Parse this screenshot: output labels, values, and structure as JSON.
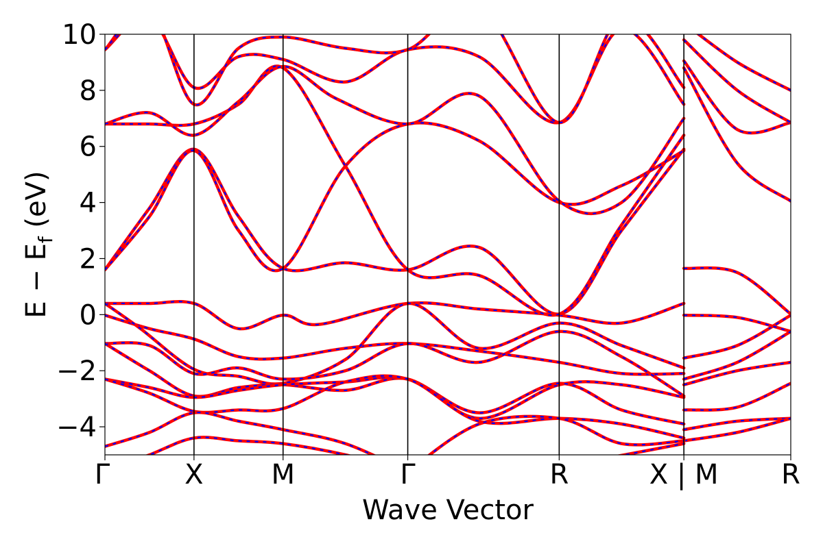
{
  "chart_data": {
    "type": "line",
    "title": "",
    "xlabel": "Wave Vector",
    "ylabel_main": "E − E",
    "ylabel_sub": "f",
    "ylabel_unit": " (eV)",
    "ylim": [
      -5,
      10
    ],
    "yticks": [
      10,
      8,
      6,
      4,
      2,
      0,
      -2,
      -4
    ],
    "ytick_labels": [
      "10",
      "8",
      "6",
      "4",
      "2",
      "0",
      "−2",
      "−4"
    ],
    "xlim": [
      0,
      7.7
    ],
    "kpoints": [
      {
        "label": "Γ",
        "x": 0
      },
      {
        "label": "X",
        "x": 1.0
      },
      {
        "label": "M",
        "x": 2.0
      },
      {
        "label": "Γ",
        "x": 3.4
      },
      {
        "label": "R",
        "x": 5.1
      },
      {
        "label": "X | M",
        "x": 6.5
      },
      {
        "label": "R",
        "x": 7.7
      }
    ],
    "grid": false,
    "legend": "none",
    "colors": {
      "primary": "#ff0000",
      "secondary": "#0000ff",
      "kline": "#000000"
    },
    "series": [
      {
        "segments": [
          [
            [
              0,
              -0.02
            ],
            [
              0.5,
              -0.5
            ],
            [
              1.0,
              -0.87
            ],
            [
              1.5,
              -1.5
            ],
            [
              2.0,
              -1.55
            ],
            [
              2.7,
              -1.2
            ],
            [
              3.4,
              -1.03
            ],
            [
              4.2,
              -1.3
            ],
            [
              5.1,
              -1.7
            ],
            [
              5.8,
              -2.1
            ],
            [
              6.5,
              -2.1
            ]
          ],
          [
            [
              6.5,
              -1.55
            ],
            [
              7.1,
              -1.1
            ],
            [
              7.7,
              -0.02
            ]
          ]
        ]
      },
      {
        "segments": [
          [
            [
              0,
              0.4
            ],
            [
              0.5,
              0.4
            ],
            [
              1.0,
              0.4
            ],
            [
              1.5,
              -0.5
            ],
            [
              2.0,
              -0.02
            ],
            [
              2.4,
              -0.35
            ],
            [
              3.4,
              0.4
            ],
            [
              4.2,
              0.2
            ],
            [
              5.1,
              -0.02
            ],
            [
              5.8,
              -0.3
            ],
            [
              6.5,
              0.4
            ]
          ],
          [
            [
              6.5,
              -0.02
            ],
            [
              7.1,
              -0.1
            ],
            [
              7.7,
              -0.6
            ]
          ]
        ]
      },
      {
        "segments": [
          [
            [
              0,
              0.4
            ],
            [
              0.4,
              -0.5
            ],
            [
              1.0,
              -1.95
            ],
            [
              1.5,
              -2.2
            ],
            [
              2.0,
              -2.45
            ],
            [
              2.7,
              -1.6
            ],
            [
              3.4,
              0.4
            ],
            [
              4.2,
              -1.2
            ],
            [
              5.1,
              -0.3
            ],
            [
              5.8,
              -1.1
            ],
            [
              6.5,
              -1.9
            ]
          ],
          [
            [
              6.5,
              -2.3
            ],
            [
              7.1,
              -1.7
            ],
            [
              7.7,
              -0.6
            ]
          ]
        ]
      },
      {
        "segments": [
          [
            [
              0,
              -1.03
            ],
            [
              0.5,
              -1.1
            ],
            [
              1.0,
              -2.1
            ],
            [
              1.5,
              -1.9
            ],
            [
              2.0,
              -2.3
            ],
            [
              2.7,
              -2.0
            ],
            [
              3.4,
              -1.03
            ],
            [
              4.2,
              -1.7
            ],
            [
              5.1,
              -0.6
            ],
            [
              5.8,
              -1.5
            ],
            [
              6.5,
              -2.9
            ]
          ],
          [
            [
              6.5,
              -2.5
            ],
            [
              7.1,
              -2.0
            ],
            [
              7.7,
              -1.7
            ]
          ]
        ]
      },
      {
        "segments": [
          [
            [
              0,
              -1.03
            ],
            [
              0.5,
              -2.0
            ],
            [
              1.0,
              -2.9
            ],
            [
              1.5,
              -2.6
            ],
            [
              2.0,
              -2.5
            ],
            [
              2.7,
              -2.7
            ],
            [
              3.4,
              -2.3
            ],
            [
              4.2,
              -3.7
            ],
            [
              5.1,
              -2.5
            ],
            [
              5.8,
              -2.5
            ],
            [
              6.5,
              -2.95
            ]
          ],
          [
            [
              6.5,
              -3.4
            ],
            [
              7.1,
              -3.3
            ],
            [
              7.7,
              -2.45
            ]
          ]
        ]
      },
      {
        "segments": [
          [
            [
              0,
              -2.3
            ],
            [
              0.5,
              -2.6
            ],
            [
              1.0,
              -2.95
            ],
            [
              1.5,
              -2.7
            ],
            [
              2.0,
              -2.5
            ],
            [
              2.7,
              -2.4
            ],
            [
              3.4,
              -2.3
            ],
            [
              4.2,
              -3.5
            ],
            [
              5.1,
              -2.45
            ],
            [
              5.8,
              -3.4
            ],
            [
              6.5,
              -3.9
            ]
          ],
          [
            [
              6.5,
              -4.1
            ],
            [
              7.1,
              -3.8
            ],
            [
              7.7,
              -3.7
            ]
          ]
        ]
      },
      {
        "segments": [
          [
            [
              0,
              -2.3
            ],
            [
              0.5,
              -2.8
            ],
            [
              1.0,
              -3.45
            ],
            [
              1.5,
              -3.4
            ],
            [
              2.0,
              -3.35
            ],
            [
              2.7,
              -2.4
            ],
            [
              3.4,
              -2.3
            ],
            [
              4.2,
              -3.8
            ],
            [
              5.1,
              -3.7
            ],
            [
              5.8,
              -3.9
            ],
            [
              6.5,
              -4.4
            ]
          ],
          [
            [
              6.5,
              -4.5
            ],
            [
              7.1,
              -4.2
            ],
            [
              7.7,
              -3.7
            ]
          ]
        ]
      },
      {
        "segments": [
          [
            [
              0,
              -4.7
            ],
            [
              0.5,
              -4.2
            ],
            [
              1.0,
              -3.5
            ],
            [
              1.5,
              -3.8
            ],
            [
              2.0,
              -4.1
            ],
            [
              2.7,
              -4.6
            ],
            [
              3.4,
              -5.6
            ]
          ],
          [
            [
              3.4,
              -5.6
            ],
            [
              4.2,
              -3.9
            ],
            [
              5.1,
              -3.7
            ],
            [
              5.8,
              -4.6
            ],
            [
              6.5,
              -4.5
            ]
          ]
        ]
      },
      {
        "segments": [
          [
            [
              0,
              -5.6
            ],
            [
              0.5,
              -5.0
            ],
            [
              1.0,
              -4.4
            ],
            [
              1.5,
              -4.5
            ],
            [
              2.0,
              -4.6
            ],
            [
              2.7,
              -5.0
            ],
            [
              3.4,
              -5.6
            ]
          ],
          [
            [
              4.2,
              -5.6
            ],
            [
              5.1,
              -5.4
            ],
            [
              6.5,
              -4.6
            ]
          ]
        ]
      },
      {
        "segments": [
          [
            [
              0,
              1.6
            ],
            [
              0.5,
              3.8
            ],
            [
              1.0,
              5.9
            ],
            [
              1.5,
              3.5
            ],
            [
              2.0,
              1.65
            ],
            [
              2.7,
              1.85
            ],
            [
              3.4,
              1.6
            ],
            [
              4.2,
              2.4
            ],
            [
              5.1,
              0.02
            ],
            [
              5.8,
              3.0
            ],
            [
              6.5,
              5.9
            ]
          ],
          [
            [
              6.5,
              1.65
            ],
            [
              7.1,
              1.5
            ],
            [
              7.7,
              0.02
            ]
          ]
        ]
      },
      {
        "segments": [
          [
            [
              0,
              1.6
            ],
            [
              0.5,
              3.5
            ],
            [
              1.0,
              5.85
            ],
            [
              1.5,
              3.0
            ],
            [
              2.0,
              1.65
            ],
            [
              2.7,
              5.3
            ],
            [
              3.4,
              6.8
            ],
            [
              4.2,
              6.2
            ],
            [
              5.1,
              4.0
            ],
            [
              5.8,
              4.6
            ],
            [
              6.5,
              5.85
            ]
          ],
          [
            [
              6.5,
              8.8
            ],
            [
              7.1,
              5.4
            ],
            [
              7.7,
              4.05
            ]
          ]
        ]
      },
      {
        "segments": [
          [
            [
              0,
              6.8
            ],
            [
              0.5,
              6.8
            ],
            [
              1.0,
              6.8
            ],
            [
              1.5,
              7.5
            ],
            [
              2.0,
              8.8
            ],
            [
              2.7,
              5.3
            ],
            [
              3.4,
              1.6
            ],
            [
              4.2,
              1.4
            ],
            [
              5.1,
              0.02
            ],
            [
              5.8,
              3.2
            ],
            [
              6.5,
              6.4
            ]
          ],
          [
            [
              6.5,
              9.05
            ],
            [
              7.1,
              6.6
            ],
            [
              7.7,
              6.85
            ]
          ]
        ]
      },
      {
        "segments": [
          [
            [
              0,
              6.8
            ],
            [
              0.5,
              7.2
            ],
            [
              1.0,
              6.4
            ],
            [
              1.5,
              7.6
            ],
            [
              2.0,
              8.85
            ],
            [
              2.6,
              7.7
            ],
            [
              3.4,
              6.8
            ],
            [
              4.2,
              7.8
            ],
            [
              5.1,
              4.05
            ],
            [
              5.8,
              4.0
            ],
            [
              6.5,
              7.0
            ]
          ],
          [
            [
              6.5,
              9.8
            ],
            [
              7.1,
              8.0
            ],
            [
              7.7,
              6.85
            ]
          ]
        ]
      },
      {
        "segments": [
          [
            [
              0,
              9.45
            ],
            [
              0.5,
              10.6
            ],
            [
              1.0,
              8.1
            ],
            [
              1.5,
              9.2
            ],
            [
              2.0,
              9.1
            ],
            [
              2.7,
              8.3
            ],
            [
              3.4,
              9.45
            ],
            [
              4.2,
              9.2
            ],
            [
              5.1,
              6.85
            ],
            [
              5.8,
              10.2
            ],
            [
              6.5,
              7.5
            ]
          ],
          [
            [
              6.5,
              10.4
            ],
            [
              7.1,
              9.0
            ],
            [
              7.7,
              8.0
            ]
          ]
        ]
      },
      {
        "segments": [
          [
            [
              0,
              9.45
            ],
            [
              0.5,
              10.9
            ],
            [
              1.0,
              7.5
            ],
            [
              1.5,
              9.5
            ],
            [
              2.0,
              9.9
            ],
            [
              2.7,
              9.5
            ],
            [
              3.4,
              9.45
            ],
            [
              4.2,
              11.0
            ],
            [
              5.1,
              6.85
            ],
            [
              5.8,
              10.6
            ],
            [
              6.5,
              8.1
            ]
          ]
        ]
      }
    ]
  }
}
